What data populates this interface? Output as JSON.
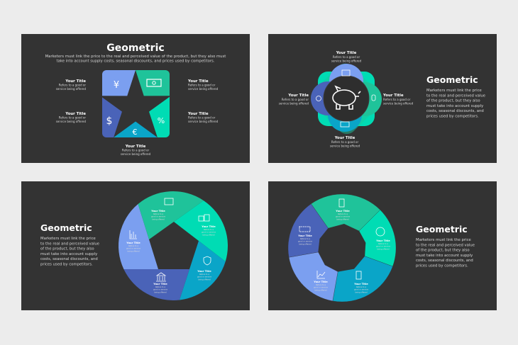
{
  "colors": {
    "background": "#ececec",
    "slide": "#333333",
    "light_blue": "#7b9ff0",
    "dark_blue": "#4a63b8",
    "green": "#1fc39a",
    "teal": "#00dcb4",
    "cyan": "#0aa5c8"
  },
  "slides": [
    {
      "title": "Geometric",
      "desc_lines": [
        "Marketers must link the price to the real and perceived value of the product, but they also must",
        "take into account supply costs, seasonal discounts, and prices used by competitors."
      ],
      "icons": [
        "yen-icon",
        "banknote-icon",
        "percent-icon",
        "euro-icon",
        "dollar-icon"
      ],
      "items": [
        {
          "title": "Your Title",
          "lines": [
            "Refers to a good or",
            "service being offered"
          ]
        },
        {
          "title": "Your Title",
          "lines": [
            "Refers to a good or",
            "service being offered"
          ]
        },
        {
          "title": "Your Title",
          "lines": [
            "Refers to a good or",
            "service being offered"
          ]
        },
        {
          "title": "Your Title",
          "lines": [
            "Refers to a good or",
            "service being offered"
          ]
        },
        {
          "title": "Your Title",
          "lines": [
            "Refers to a good or",
            "service being offered"
          ]
        }
      ]
    },
    {
      "title": "Geometric",
      "desc_lines": [
        "Marketers must link the price",
        "to the real and perceived value",
        "of the product, but they also",
        "must take into account supply",
        "costs, seasonal discounts, and",
        "prices used by competitors."
      ],
      "icons": [
        "piggy-bank-icon",
        "wallet-icon",
        "coin-icon",
        "money-bag-icon",
        "credit-card-icon"
      ],
      "items": [
        {
          "title": "Your Title",
          "lines": [
            "Refers to a good or",
            "service being offered"
          ]
        },
        {
          "title": "Your Title",
          "lines": [
            "Refers to a good or",
            "service being offered"
          ]
        },
        {
          "title": "Your Title",
          "lines": [
            "Refers to a good or",
            "service being offered"
          ]
        },
        {
          "title": "Your Title",
          "lines": [
            "Refers to a good or",
            "service being offered"
          ]
        }
      ]
    },
    {
      "title": "Geometric",
      "desc_lines": [
        "Marketers must link the price",
        "to the real and perceived value",
        "of the product, but they also",
        "must take into account supply",
        "costs, seasonal discounts, and",
        "prices used by competitors."
      ],
      "icons": [
        "wallet-icon",
        "coins-icon",
        "shield-lock-icon",
        "bank-icon",
        "bar-chart-icon"
      ],
      "items": [
        {
          "title": "Your Title",
          "lines": [
            "Refers to a",
            "good or service",
            "being offered"
          ]
        },
        {
          "title": "Your Title",
          "lines": [
            "Refers to a",
            "good or service",
            "being offered"
          ]
        },
        {
          "title": "Your Title",
          "lines": [
            "Refers to a",
            "good or service",
            "being offered"
          ]
        },
        {
          "title": "Your Title",
          "lines": [
            "Refers to a",
            "good or service",
            "being offered"
          ]
        },
        {
          "title": "Your Title",
          "lines": [
            "Refers to a",
            "good or service",
            "being offered"
          ]
        }
      ]
    },
    {
      "title": "Geometric",
      "desc_lines": [
        "Marketers must link the price",
        "to the real and perceived value",
        "of the product, but they also",
        "must take into account supply",
        "costs, seasonal discounts, and",
        "prices used by competitors."
      ],
      "icons": [
        "document-icon",
        "pie-chart-icon",
        "calculator-icon",
        "line-chart-icon",
        "abacus-icon"
      ],
      "items": [
        {
          "title": "Your Title",
          "lines": [
            "Refers to a",
            "good or service",
            "being offered"
          ]
        },
        {
          "title": "Your Title",
          "lines": [
            "Refers to a",
            "good or service",
            "being offered"
          ]
        },
        {
          "title": "Your Title",
          "lines": [
            "Refers to a",
            "good or service",
            "being offered"
          ]
        },
        {
          "title": "Your Title",
          "lines": [
            "Refers to a",
            "good or service",
            "being offered"
          ]
        },
        {
          "title": "Your Title",
          "lines": [
            "Refers to a",
            "good or service",
            "being offered"
          ]
        }
      ]
    }
  ]
}
